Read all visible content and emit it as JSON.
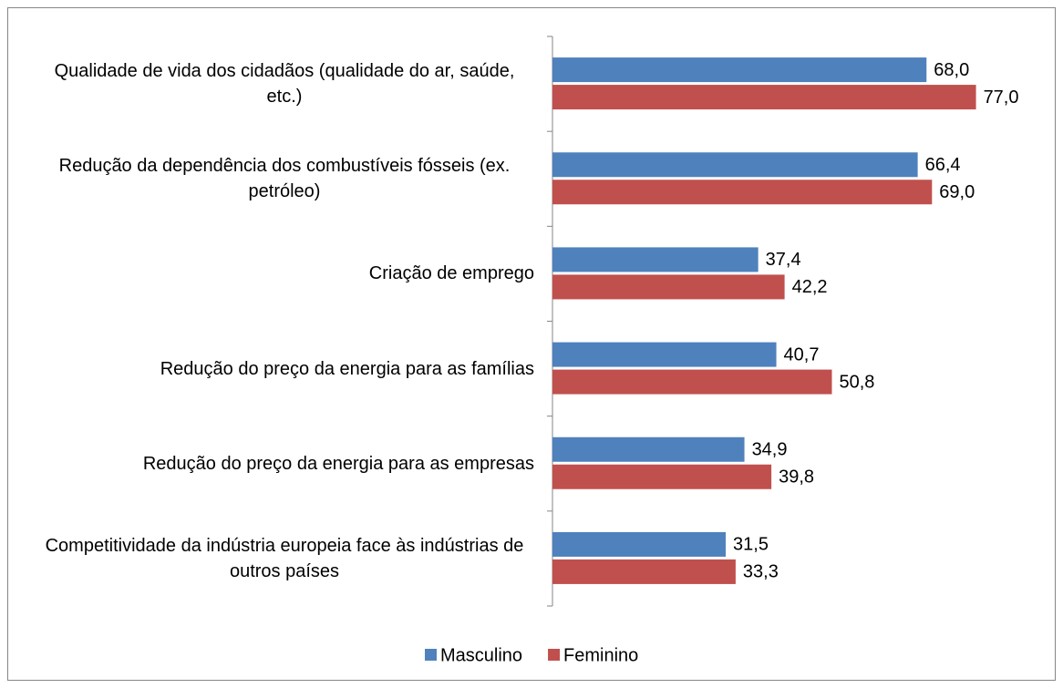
{
  "chart_data": {
    "type": "barh",
    "categories": [
      "Qualidade de vida dos cidadãos (qualidade do ar, saúde, etc.)",
      "Redução da dependência dos combustíveis fósseis (ex. petróleo)",
      "Criação de emprego",
      "Redução do preço da energia para as famílias",
      "Redução do preço da energia para as empresas",
      "Competitividade da indústria europeia face às indústrias de outros países"
    ],
    "series": [
      {
        "name": "Masculino",
        "color": "#4f81bd",
        "values": [
          68.0,
          66.4,
          37.4,
          40.7,
          34.9,
          31.5
        ],
        "value_labels": [
          "68,0",
          "66,4",
          "37,4",
          "40,7",
          "34,9",
          "31,5"
        ]
      },
      {
        "name": "Feminino",
        "color": "#c0504d",
        "values": [
          77.0,
          69.0,
          42.2,
          50.8,
          39.8,
          33.3
        ],
        "value_labels": [
          "77,0",
          "69,0",
          "42,2",
          "50,8",
          "39,8",
          "33,3"
        ]
      }
    ],
    "xlim": [
      0,
      90
    ],
    "legend": "bottom"
  }
}
